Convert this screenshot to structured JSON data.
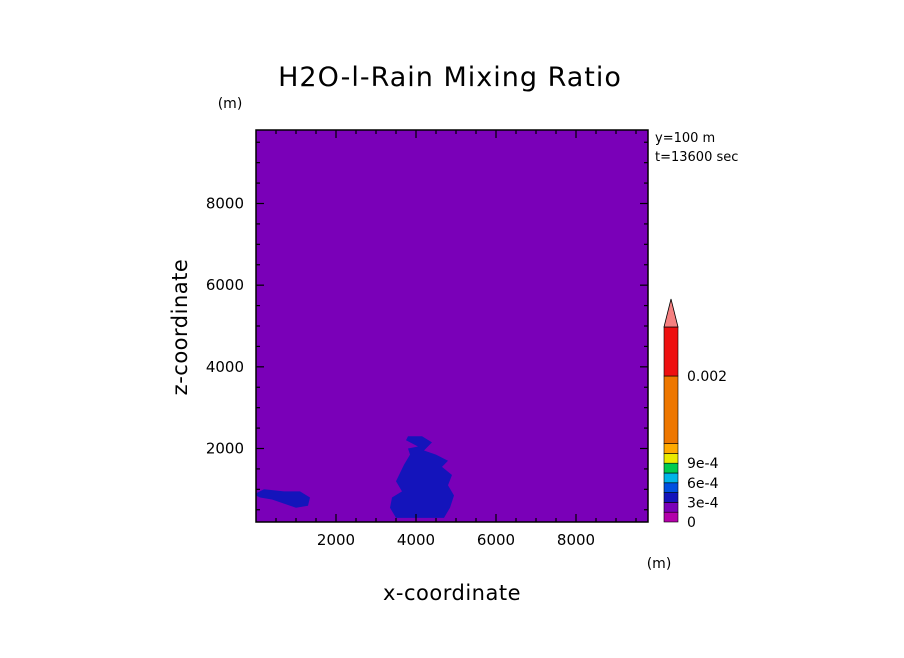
{
  "chart_data": {
    "type": "heatmap",
    "title": "H2O-l-Rain Mixing Ratio",
    "xlabel": "x-coordinate",
    "ylabel": "z-coordinate",
    "x_unit": "(m)",
    "y_unit": "(m)",
    "xlim": [
      0,
      9800
    ],
    "ylim": [
      200,
      9800
    ],
    "xticks": [
      "2000",
      "4000",
      "6000",
      "8000"
    ],
    "yticks": [
      "2000",
      "4000",
      "6000",
      "8000"
    ],
    "info": [
      "y=100 m",
      "t=13600 sec"
    ],
    "background_value": 0,
    "regions": [
      {
        "level": 0.00015,
        "polygon": [
          [
            0,
            900
          ],
          [
            200,
            1000
          ],
          [
            700,
            950
          ],
          [
            1100,
            950
          ],
          [
            1350,
            800
          ],
          [
            1300,
            600
          ],
          [
            1000,
            550
          ],
          [
            700,
            650
          ],
          [
            400,
            750
          ],
          [
            100,
            800
          ],
          [
            0,
            850
          ]
        ]
      },
      {
        "level": 0.00015,
        "polygon": [
          [
            3500,
            300
          ],
          [
            3350,
            550
          ],
          [
            3400,
            800
          ],
          [
            3650,
            950
          ],
          [
            3500,
            1200
          ],
          [
            3600,
            1400
          ],
          [
            3700,
            1600
          ],
          [
            3850,
            1850
          ],
          [
            3800,
            2000
          ],
          [
            4050,
            2050
          ],
          [
            3750,
            2200
          ],
          [
            3800,
            2300
          ],
          [
            4150,
            2300
          ],
          [
            4400,
            2150
          ],
          [
            4200,
            1950
          ],
          [
            4500,
            1850
          ],
          [
            4800,
            1700
          ],
          [
            4650,
            1550
          ],
          [
            4900,
            1350
          ],
          [
            4800,
            1100
          ],
          [
            4950,
            850
          ],
          [
            4850,
            550
          ],
          [
            4700,
            300
          ]
        ]
      }
    ],
    "colorbar": {
      "levels": [
        "0",
        "1.5e-4",
        "3e-4",
        "4.5e-4",
        "6e-4",
        "7.5e-4",
        "9e-4",
        "1.05e-3",
        "1.5e-3",
        "0.002"
      ],
      "colors": [
        "#b400aa",
        "#7a00b8",
        "#1414bb",
        "#0050e0",
        "#00b4e8",
        "#00cc50",
        "#eaea00",
        "#ffaa00",
        "#ee7700",
        "#ee1010",
        "#f58080"
      ],
      "tick_labels": [
        {
          "text": "0",
          "level_index": 0
        },
        {
          "text": "3e-4",
          "level_index": 2
        },
        {
          "text": "6e-4",
          "level_index": 4
        },
        {
          "text": "9e-4",
          "level_index": 6
        },
        {
          "text": "0.002",
          "level_index": 9
        }
      ],
      "extend": "max"
    }
  }
}
